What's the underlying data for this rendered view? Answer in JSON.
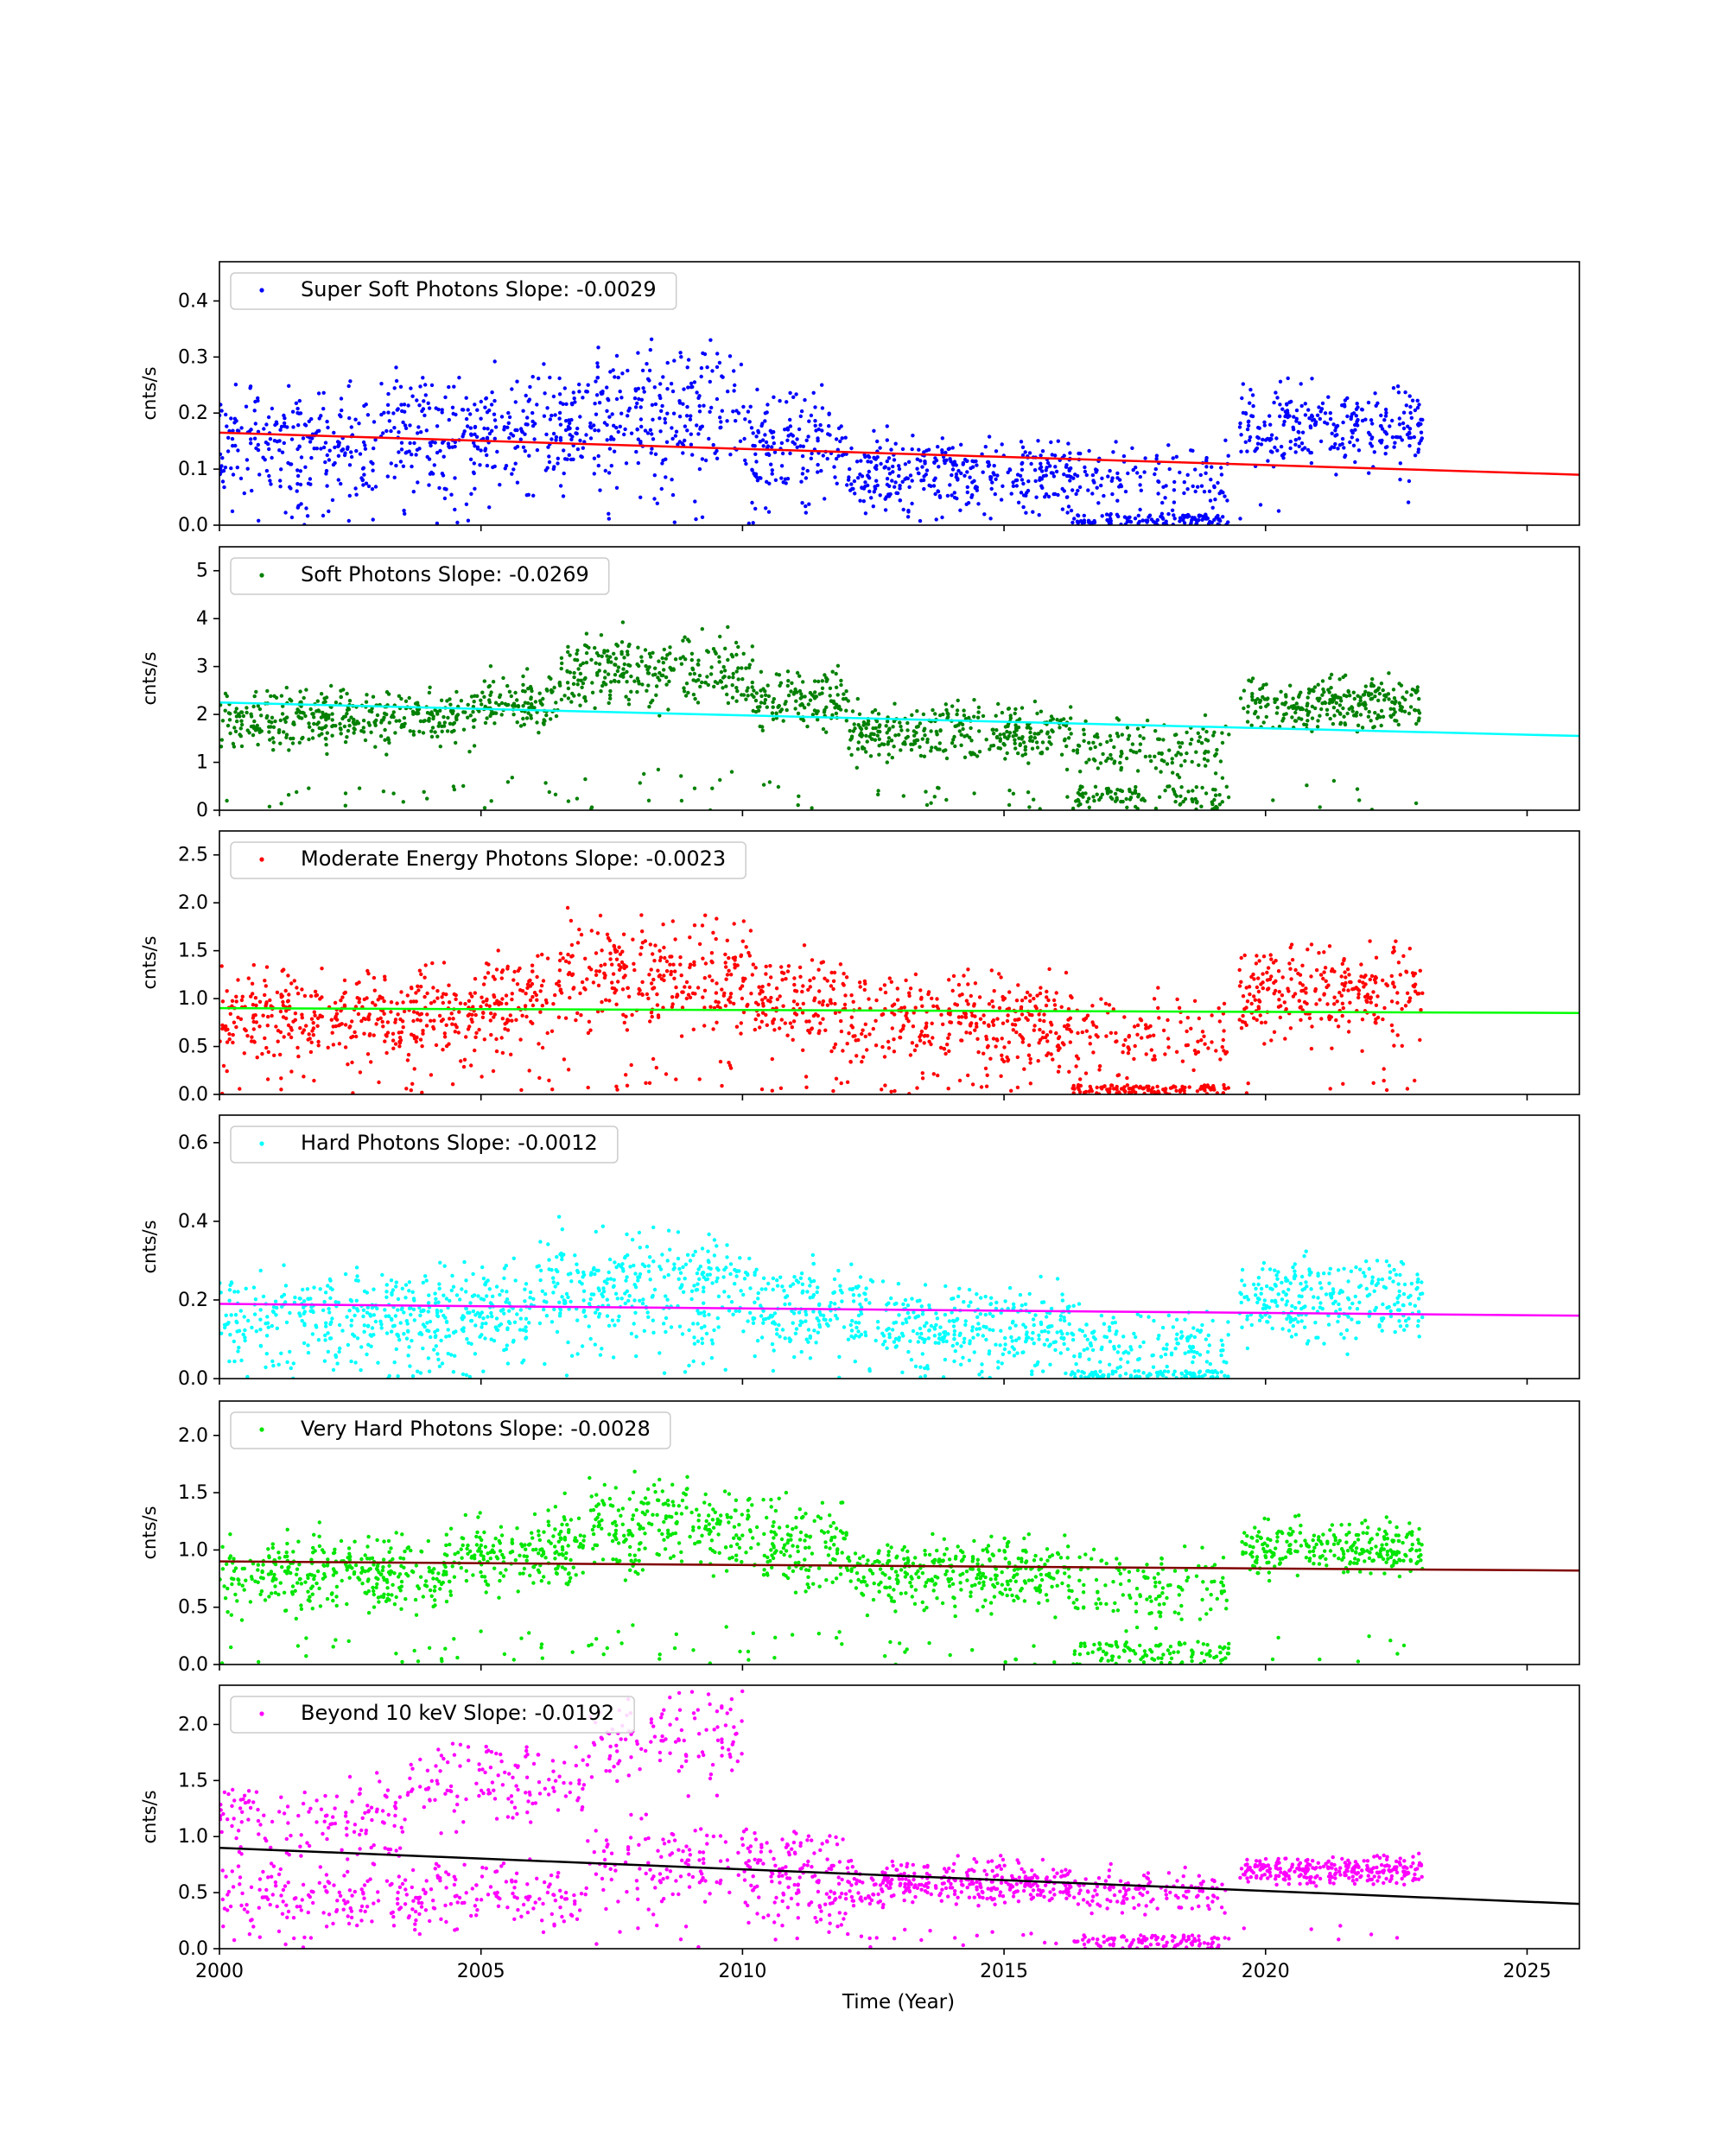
{
  "figure": {
    "xlabel": "Time (Year)",
    "xticks": [
      2000,
      2005,
      2010,
      2015,
      2020,
      2025
    ],
    "xlim": [
      2000,
      2026
    ]
  },
  "chart_data": [
    {
      "type": "scatter",
      "legend": "Super Soft Photons Slope: -0.0029",
      "ylabel": "cnts/s",
      "ylim": [
        0,
        0.47
      ],
      "yticks": [
        "0.0",
        "0.1",
        "0.2",
        "0.3",
        "0.4"
      ],
      "point_color": "#0000ff",
      "fit_color": "#ff0000",
      "fit": {
        "x": [
          2000,
          2026
        ],
        "y": [
          0.165,
          0.09
        ]
      },
      "segments": [
        {
          "x0": 2000.0,
          "x1": 2003.0,
          "level": 0.15,
          "spread": 0.06,
          "dropouts": 0.04
        },
        {
          "x0": 2003.0,
          "x1": 2007.0,
          "level": 0.16,
          "spread": 0.065,
          "dropouts": 0.04
        },
        {
          "x0": 2007.0,
          "x1": 2010.0,
          "level": 0.2,
          "spread": 0.075,
          "dropouts": 0.04
        },
        {
          "x0": 2010.0,
          "x1": 2012.0,
          "level": 0.14,
          "spread": 0.06,
          "dropouts": 0.04
        },
        {
          "x0": 2012.0,
          "x1": 2016.3,
          "level": 0.09,
          "spread": 0.04,
          "dropouts": 0.05
        },
        {
          "x0": 2016.3,
          "x1": 2019.3,
          "level": 0.08,
          "spread": 0.04,
          "dropouts": 0.45,
          "low": 0.01
        },
        {
          "x0": 2019.5,
          "x1": 2023.0,
          "level": 0.18,
          "spread": 0.045,
          "dropouts": 0.02
        }
      ]
    },
    {
      "type": "scatter",
      "legend": "Soft Photons Slope: -0.0269",
      "ylabel": "cnts/s",
      "ylim": [
        0,
        5.5
      ],
      "yticks": [
        "0",
        "1",
        "2",
        "3",
        "4",
        "5"
      ],
      "point_color": "#008000",
      "fit_color": "#00ffff",
      "fit": {
        "x": [
          2000,
          2026
        ],
        "y": [
          2.25,
          1.55
        ]
      },
      "segments": [
        {
          "x0": 2000.0,
          "x1": 2005.0,
          "level": 1.9,
          "spread": 0.35,
          "dropouts": 0.05
        },
        {
          "x0": 2005.0,
          "x1": 2006.5,
          "level": 2.3,
          "spread": 0.35,
          "dropouts": 0.05
        },
        {
          "x0": 2006.5,
          "x1": 2010.2,
          "level": 2.9,
          "spread": 0.45,
          "dropouts": 0.05
        },
        {
          "x0": 2010.2,
          "x1": 2012.0,
          "level": 2.3,
          "spread": 0.35,
          "dropouts": 0.05
        },
        {
          "x0": 2012.0,
          "x1": 2016.3,
          "level": 1.6,
          "spread": 0.35,
          "dropouts": 0.05
        },
        {
          "x0": 2016.3,
          "x1": 2019.3,
          "level": 1.3,
          "spread": 0.4,
          "dropouts": 0.45,
          "low": 0.25
        },
        {
          "x0": 2019.5,
          "x1": 2023.0,
          "level": 2.2,
          "spread": 0.3,
          "dropouts": 0.03
        }
      ]
    },
    {
      "type": "scatter",
      "legend": "Moderate Energy Photons Slope: -0.0023",
      "ylabel": "cnts/s",
      "ylim": [
        0,
        2.75
      ],
      "yticks": [
        "0.0",
        "0.5",
        "1.0",
        "1.5",
        "2.0",
        "2.5"
      ],
      "point_color": "#ff0000",
      "fit_color": "#00ff00",
      "fit": {
        "x": [
          2000,
          2026
        ],
        "y": [
          0.9,
          0.85
        ]
      },
      "segments": [
        {
          "x0": 2000.0,
          "x1": 2005.0,
          "level": 0.8,
          "spread": 0.28,
          "dropouts": 0.05
        },
        {
          "x0": 2005.0,
          "x1": 2006.5,
          "level": 0.95,
          "spread": 0.3,
          "dropouts": 0.05
        },
        {
          "x0": 2006.5,
          "x1": 2010.2,
          "level": 1.25,
          "spread": 0.35,
          "dropouts": 0.05
        },
        {
          "x0": 2010.2,
          "x1": 2012.0,
          "level": 0.95,
          "spread": 0.3,
          "dropouts": 0.05
        },
        {
          "x0": 2012.0,
          "x1": 2016.3,
          "level": 0.75,
          "spread": 0.3,
          "dropouts": 0.05
        },
        {
          "x0": 2016.3,
          "x1": 2019.3,
          "level": 0.6,
          "spread": 0.25,
          "dropouts": 0.45,
          "low": 0.05
        },
        {
          "x0": 2019.5,
          "x1": 2023.0,
          "level": 1.05,
          "spread": 0.28,
          "dropouts": 0.03
        }
      ]
    },
    {
      "type": "scatter",
      "legend": "Hard Photons Slope: -0.0012",
      "ylabel": "cnts/s",
      "ylim": [
        0,
        0.67
      ],
      "yticks": [
        "0.0",
        "0.2",
        "0.4",
        "0.6"
      ],
      "point_color": "#00ffff",
      "fit_color": "#ff00ff",
      "fit": {
        "x": [
          2000,
          2026
        ],
        "y": [
          0.19,
          0.16
        ]
      },
      "segments": [
        {
          "x0": 2000.0,
          "x1": 2006.0,
          "level": 0.16,
          "spread": 0.07,
          "dropouts": 0.04
        },
        {
          "x0": 2006.0,
          "x1": 2010.2,
          "level": 0.23,
          "spread": 0.09,
          "dropouts": 0.04
        },
        {
          "x0": 2010.2,
          "x1": 2012.5,
          "level": 0.18,
          "spread": 0.07,
          "dropouts": 0.04
        },
        {
          "x0": 2012.5,
          "x1": 2016.3,
          "level": 0.13,
          "spread": 0.06,
          "dropouts": 0.04
        },
        {
          "x0": 2016.3,
          "x1": 2019.3,
          "level": 0.09,
          "spread": 0.05,
          "dropouts": 0.4,
          "low": 0.01
        },
        {
          "x0": 2019.5,
          "x1": 2023.0,
          "level": 0.2,
          "spread": 0.06,
          "dropouts": 0.02
        }
      ]
    },
    {
      "type": "scatter",
      "legend": "Very Hard Photons Slope: -0.0028",
      "ylabel": "cnts/s",
      "ylim": [
        0,
        2.3
      ],
      "yticks": [
        "0.0",
        "0.5",
        "1.0",
        "1.5",
        "2.0"
      ],
      "point_color": "#00e600",
      "fit_color": "#800000",
      "fit": {
        "x": [
          2000,
          2026
        ],
        "y": [
          0.9,
          0.82
        ]
      },
      "segments": [
        {
          "x0": 2000.0,
          "x1": 2004.5,
          "level": 0.78,
          "spread": 0.2,
          "dropouts": 0.05
        },
        {
          "x0": 2004.5,
          "x1": 2007.0,
          "level": 1.0,
          "spread": 0.22,
          "dropouts": 0.05
        },
        {
          "x0": 2007.0,
          "x1": 2010.2,
          "level": 1.2,
          "spread": 0.25,
          "dropouts": 0.05
        },
        {
          "x0": 2010.2,
          "x1": 2012.0,
          "level": 1.05,
          "spread": 0.22,
          "dropouts": 0.05
        },
        {
          "x0": 2012.0,
          "x1": 2016.3,
          "level": 0.8,
          "spread": 0.18,
          "dropouts": 0.05
        },
        {
          "x0": 2016.3,
          "x1": 2019.3,
          "level": 0.65,
          "spread": 0.2,
          "dropouts": 0.45,
          "low": 0.1
        },
        {
          "x0": 2019.5,
          "x1": 2023.0,
          "level": 1.02,
          "spread": 0.14,
          "dropouts": 0.03
        }
      ]
    },
    {
      "type": "scatter",
      "legend": "Beyond 10 keV Slope: -0.0192",
      "ylabel": "cnts/s",
      "ylim": [
        0,
        2.35
      ],
      "yticks": [
        "0.0",
        "0.5",
        "1.0",
        "1.5",
        "2.0"
      ],
      "point_color": "#ff00ff",
      "fit_color": "#000000",
      "fit": {
        "x": [
          2000,
          2026
        ],
        "y": [
          0.9,
          0.4
        ]
      },
      "segments": [
        {
          "x0": 2000.0,
          "x1": 2003.5,
          "level": 1.15,
          "spread": 0.2,
          "dropouts": 0.05,
          "alt": 0.45
        },
        {
          "x0": 2003.5,
          "x1": 2007.0,
          "level": 1.45,
          "spread": 0.22,
          "dropouts": 0.05,
          "alt": 0.5
        },
        {
          "x0": 2007.0,
          "x1": 2010.0,
          "level": 1.85,
          "spread": 0.25,
          "dropouts": 0.05,
          "alt": 0.75
        },
        {
          "x0": 2010.0,
          "x1": 2012.0,
          "level": 0.8,
          "spread": 0.16,
          "dropouts": 0.05,
          "alt": 0.45
        },
        {
          "x0": 2012.0,
          "x1": 2016.3,
          "level": 0.58,
          "spread": 0.12,
          "dropouts": 0.06
        },
        {
          "x0": 2016.3,
          "x1": 2019.3,
          "level": 0.5,
          "spread": 0.12,
          "dropouts": 0.45,
          "low": 0.06
        },
        {
          "x0": 2019.5,
          "x1": 2023.0,
          "level": 0.7,
          "spread": 0.08,
          "dropouts": 0.02
        }
      ]
    }
  ]
}
